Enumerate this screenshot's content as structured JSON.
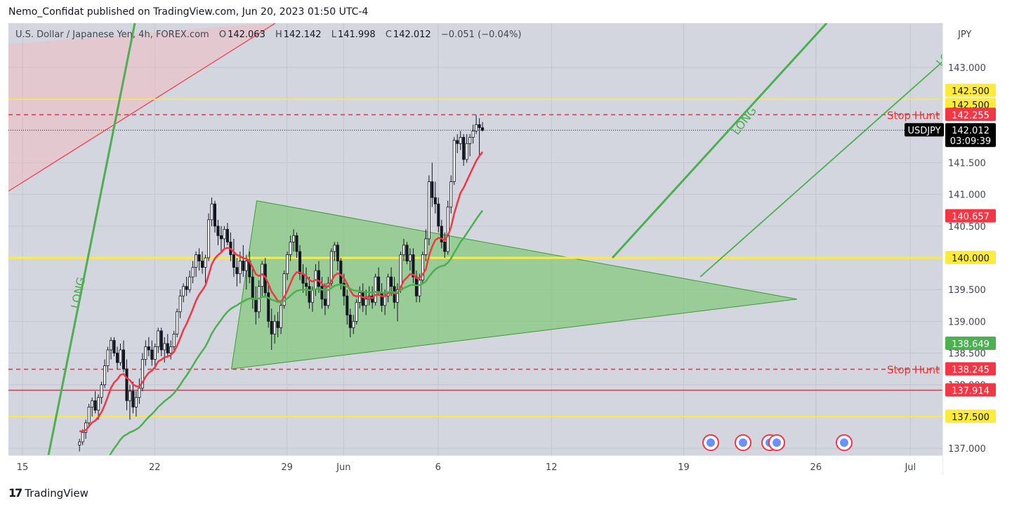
{
  "publisher": "Nemo_Confidat published on TradingView.com, Jun 20, 2023 01:50 UTC-4",
  "brand": "TradingView",
  "brand_mark": "17",
  "legend": {
    "symbol": "U.S. Dollar / Japanese Yen, 4h, FOREX.com",
    "open_label": "O",
    "open": "142.063",
    "high_label": "H",
    "high": "142.142",
    "low_label": "L",
    "low": "141.998",
    "close_label": "C",
    "close": "142.012",
    "change": "−0.051 (−0.04%)"
  },
  "colors": {
    "grid": "#dfe1e8",
    "plot_bg": "#d1d4dc",
    "up_candle": "#ffffff",
    "down_candle": "#131722",
    "yellow_line": "#ffeb3b",
    "red_line": "#f23645",
    "green_line": "#4caf50",
    "triangle_fill": "#80c777",
    "stop_hunt_text": "#e53935",
    "price_tag_bg": "#000000"
  },
  "chart_data": {
    "type": "candlestick",
    "currency": "JPY",
    "y_range": [
      136.9,
      143.5
    ],
    "x_range": [
      "May 14",
      "Jul 1"
    ],
    "y_ticks": [
      "143.000",
      "141.500",
      "141.000",
      "140.500",
      "139.500",
      "139.000",
      "138.500",
      "138.000",
      "137.000"
    ],
    "x_ticks": [
      {
        "label": "15",
        "date": "2023-05-15"
      },
      {
        "label": "22",
        "date": "2023-05-22"
      },
      {
        "label": "29",
        "date": "2023-05-29"
      },
      {
        "label": "Jun",
        "date": "2023-06-01"
      },
      {
        "label": "6",
        "date": "2023-06-06"
      },
      {
        "label": "12",
        "date": "2023-06-12"
      },
      {
        "label": "19",
        "date": "2023-06-19"
      },
      {
        "label": "26",
        "date": "2023-06-26"
      },
      {
        "label": "Jul",
        "date": "2023-07-01"
      }
    ],
    "price_tags": [
      {
        "label": "142.500",
        "value": 142.5,
        "bg": "#ffeb3b",
        "fg": "#131722"
      },
      {
        "label": "142.500",
        "value": 142.5,
        "bg": "#ffeb3b",
        "fg": "#131722"
      },
      {
        "label": "142.255",
        "value": 142.255,
        "bg": "#f23645",
        "fg": "#ffffff"
      },
      {
        "label": "142.012",
        "value": 142.012,
        "bg": "#000000",
        "fg": "#ffffff",
        "sub": "03:09:39",
        "symbol": "USDJPY"
      },
      {
        "label": "140.657",
        "value": 140.657,
        "bg": "#f23645",
        "fg": "#ffffff"
      },
      {
        "label": "140.000",
        "value": 140.0,
        "bg": "#ffeb3b",
        "fg": "#131722"
      },
      {
        "label": "138.649",
        "value": 138.649,
        "bg": "#4caf50",
        "fg": "#ffffff"
      },
      {
        "label": "138.245",
        "value": 138.245,
        "bg": "#f23645",
        "fg": "#ffffff"
      },
      {
        "label": "137.914",
        "value": 137.914,
        "bg": "#f23645",
        "fg": "#ffffff"
      },
      {
        "label": "137.500",
        "value": 137.5,
        "bg": "#ffeb3b",
        "fg": "#131722"
      }
    ],
    "horizontal_lines": [
      {
        "value": 142.5,
        "color": "#ffeb3b",
        "style": "solid"
      },
      {
        "value": 142.255,
        "color": "#f23645",
        "style": "dashed",
        "label": "Stop Hunt"
      },
      {
        "value": 140.0,
        "color": "#ffeb3b",
        "style": "solid"
      },
      {
        "value": 138.245,
        "color": "#f23645",
        "style": "dashed",
        "label": "Stop Hunt"
      },
      {
        "value": 137.914,
        "color": "#f23645",
        "style": "solid"
      },
      {
        "value": 137.5,
        "color": "#ffeb3b",
        "style": "solid"
      }
    ],
    "trendline_labels": [
      "LONG",
      "LONG",
      "LO"
    ],
    "ema_fast_last": 140.657,
    "ema_slow_last": 138.649,
    "candles": [
      [
        137.05,
        137.15,
        136.95,
        137.1
      ],
      [
        137.1,
        137.3,
        137.05,
        137.25
      ],
      [
        137.25,
        137.45,
        137.15,
        137.4
      ],
      [
        137.4,
        137.7,
        137.35,
        137.65
      ],
      [
        137.65,
        137.8,
        137.5,
        137.75
      ],
      [
        137.75,
        137.9,
        137.55,
        137.6
      ],
      [
        137.6,
        137.85,
        137.45,
        137.8
      ],
      [
        137.8,
        138.05,
        137.7,
        138.0
      ],
      [
        138.0,
        138.4,
        137.95,
        138.3
      ],
      [
        138.3,
        138.6,
        138.2,
        138.55
      ],
      [
        138.55,
        138.75,
        138.4,
        138.7
      ],
      [
        138.7,
        138.75,
        138.45,
        138.5
      ],
      [
        138.5,
        138.6,
        138.25,
        138.35
      ],
      [
        138.35,
        138.65,
        138.3,
        138.55
      ],
      [
        138.55,
        138.7,
        138.2,
        138.25
      ],
      [
        138.25,
        138.4,
        137.6,
        137.75
      ],
      [
        137.75,
        138.0,
        137.45,
        137.9
      ],
      [
        137.9,
        138.05,
        137.55,
        137.65
      ],
      [
        137.65,
        137.9,
        137.5,
        137.8
      ],
      [
        137.8,
        138.1,
        137.7,
        137.95
      ],
      [
        137.95,
        138.5,
        137.9,
        138.4
      ],
      [
        138.4,
        138.7,
        138.3,
        138.6
      ],
      [
        138.6,
        138.75,
        138.45,
        138.55
      ],
      [
        138.55,
        138.7,
        138.3,
        138.4
      ],
      [
        138.4,
        138.65,
        138.25,
        138.6
      ],
      [
        138.6,
        138.9,
        138.5,
        138.85
      ],
      [
        138.85,
        138.9,
        138.45,
        138.55
      ],
      [
        138.55,
        138.75,
        138.35,
        138.65
      ],
      [
        138.65,
        138.8,
        138.45,
        138.5
      ],
      [
        138.5,
        138.7,
        138.4,
        138.6
      ],
      [
        138.6,
        138.85,
        138.55,
        138.8
      ],
      [
        138.8,
        139.2,
        138.75,
        139.15
      ],
      [
        139.15,
        139.5,
        139.05,
        139.4
      ],
      [
        139.4,
        139.6,
        139.3,
        139.55
      ],
      [
        139.55,
        139.7,
        139.4,
        139.5
      ],
      [
        139.5,
        139.8,
        139.45,
        139.7
      ],
      [
        139.7,
        139.95,
        139.6,
        139.85
      ],
      [
        139.85,
        140.1,
        139.7,
        140.05
      ],
      [
        140.05,
        140.15,
        139.8,
        139.95
      ],
      [
        139.95,
        140.1,
        139.75,
        139.85
      ],
      [
        139.85,
        140.05,
        139.6,
        140.0
      ],
      [
        140.0,
        140.7,
        139.95,
        140.6
      ],
      [
        140.6,
        140.95,
        140.5,
        140.85
      ],
      [
        140.85,
        140.9,
        140.4,
        140.5
      ],
      [
        140.5,
        140.6,
        140.2,
        140.35
      ],
      [
        140.35,
        140.5,
        140.1,
        140.3
      ],
      [
        140.3,
        140.5,
        140.15,
        140.45
      ],
      [
        140.45,
        140.55,
        140.2,
        140.25
      ],
      [
        140.25,
        140.4,
        139.95,
        140.05
      ],
      [
        140.05,
        140.3,
        139.7,
        139.85
      ],
      [
        139.85,
        140.0,
        139.55,
        139.75
      ],
      [
        139.75,
        140.1,
        139.6,
        139.95
      ],
      [
        139.95,
        140.2,
        139.7,
        139.8
      ],
      [
        139.8,
        140.05,
        139.5,
        139.95
      ],
      [
        139.95,
        140.1,
        139.6,
        139.7
      ],
      [
        139.7,
        139.85,
        139.2,
        139.35
      ],
      [
        139.35,
        139.55,
        138.95,
        139.15
      ],
      [
        139.15,
        139.65,
        139.05,
        139.55
      ],
      [
        139.55,
        139.95,
        139.4,
        139.9
      ],
      [
        139.9,
        140.0,
        139.4,
        139.45
      ],
      [
        139.45,
        139.6,
        138.9,
        139.0
      ],
      [
        139.0,
        139.2,
        138.55,
        138.8
      ],
      [
        138.8,
        139.1,
        138.65,
        139.0
      ],
      [
        139.0,
        139.15,
        138.75,
        138.9
      ],
      [
        138.9,
        139.3,
        138.8,
        139.25
      ],
      [
        139.25,
        139.8,
        139.2,
        139.75
      ],
      [
        139.75,
        140.1,
        139.65,
        140.05
      ],
      [
        140.05,
        140.35,
        139.95,
        140.25
      ],
      [
        140.25,
        140.45,
        140.1,
        140.35
      ],
      [
        140.35,
        140.4,
        140.0,
        140.1
      ],
      [
        140.1,
        140.2,
        139.65,
        139.75
      ],
      [
        139.75,
        139.9,
        139.45,
        139.6
      ],
      [
        139.6,
        139.85,
        139.4,
        139.55
      ],
      [
        139.55,
        139.7,
        139.2,
        139.3
      ],
      [
        139.3,
        139.55,
        139.15,
        139.5
      ],
      [
        139.5,
        139.9,
        139.4,
        139.8
      ],
      [
        139.8,
        139.95,
        139.45,
        139.55
      ],
      [
        139.55,
        139.7,
        139.2,
        139.35
      ],
      [
        139.35,
        139.6,
        139.1,
        139.25
      ],
      [
        139.25,
        139.7,
        139.2,
        139.6
      ],
      [
        139.6,
        140.15,
        139.55,
        140.1
      ],
      [
        140.1,
        140.25,
        139.95,
        140.2
      ],
      [
        140.2,
        140.25,
        139.8,
        139.95
      ],
      [
        139.95,
        140.0,
        139.5,
        139.6
      ],
      [
        139.6,
        139.75,
        139.25,
        139.4
      ],
      [
        139.4,
        139.5,
        138.95,
        139.1
      ],
      [
        139.1,
        139.2,
        138.75,
        138.9
      ],
      [
        138.9,
        139.1,
        138.8,
        139.0
      ],
      [
        139.0,
        139.35,
        138.95,
        139.3
      ],
      [
        139.3,
        139.55,
        139.2,
        139.45
      ],
      [
        139.45,
        139.6,
        139.15,
        139.25
      ],
      [
        139.25,
        139.5,
        139.1,
        139.35
      ],
      [
        139.35,
        139.55,
        139.25,
        139.4
      ],
      [
        139.4,
        139.55,
        139.2,
        139.3
      ],
      [
        139.3,
        139.75,
        139.25,
        139.7
      ],
      [
        139.7,
        139.85,
        139.4,
        139.45
      ],
      [
        139.45,
        139.6,
        139.15,
        139.25
      ],
      [
        139.25,
        139.5,
        139.1,
        139.4
      ],
      [
        139.4,
        139.75,
        139.3,
        139.7
      ],
      [
        139.7,
        139.85,
        139.4,
        139.55
      ],
      [
        139.55,
        139.7,
        139.2,
        139.3
      ],
      [
        139.3,
        139.6,
        139.0,
        139.5
      ],
      [
        139.5,
        140.1,
        139.45,
        140.05
      ],
      [
        140.05,
        140.3,
        139.95,
        140.2
      ],
      [
        140.2,
        140.25,
        139.9,
        139.95
      ],
      [
        139.95,
        140.15,
        139.8,
        140.05
      ],
      [
        140.05,
        140.15,
        139.6,
        139.7
      ],
      [
        139.7,
        139.8,
        139.3,
        139.4
      ],
      [
        139.4,
        139.75,
        139.3,
        139.65
      ],
      [
        139.65,
        140.1,
        139.6,
        140.05
      ],
      [
        140.05,
        140.45,
        139.95,
        140.3
      ],
      [
        140.3,
        141.3,
        140.2,
        141.2
      ],
      [
        141.2,
        141.5,
        140.8,
        140.95
      ],
      [
        140.95,
        141.2,
        140.7,
        140.85
      ],
      [
        140.85,
        140.95,
        140.4,
        140.5
      ],
      [
        140.5,
        140.6,
        140.15,
        140.25
      ],
      [
        140.25,
        140.4,
        140.0,
        140.1
      ],
      [
        140.1,
        140.9,
        140.05,
        140.8
      ],
      [
        140.8,
        141.3,
        140.7,
        141.2
      ],
      [
        141.2,
        141.9,
        141.15,
        141.85
      ],
      [
        141.85,
        141.95,
        141.65,
        141.8
      ],
      [
        141.8,
        142.0,
        141.7,
        141.9
      ],
      [
        141.9,
        141.95,
        141.45,
        141.55
      ],
      [
        141.55,
        141.95,
        141.5,
        141.8
      ],
      [
        141.8,
        141.95,
        141.6,
        141.9
      ],
      [
        141.9,
        142.1,
        141.8,
        142.0
      ],
      [
        142.0,
        142.25,
        141.95,
        142.1
      ],
      [
        142.1,
        142.2,
        141.6,
        142.05
      ],
      [
        142.05,
        142.14,
        141.99,
        142.01
      ]
    ]
  }
}
